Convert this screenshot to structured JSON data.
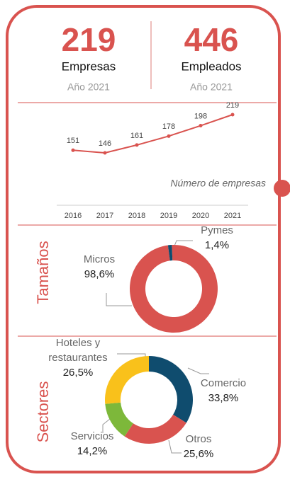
{
  "stats": [
    {
      "value": 219,
      "label": "Empresas",
      "year": "Año 2021"
    },
    {
      "value": 446,
      "label": "Empleados",
      "year": "Año 2021"
    }
  ],
  "chart_data": [
    {
      "type": "line",
      "annotation": "Número de empresas",
      "x": [
        2016,
        2017,
        2018,
        2019,
        2020,
        2021
      ],
      "values": [
        151,
        146,
        161,
        178,
        198,
        219
      ],
      "color": "#d9534f"
    },
    {
      "type": "pie",
      "title": "Tamaños",
      "categories": [
        "Micros",
        "Pymes"
      ],
      "values": [
        98.6,
        1.4
      ],
      "value_labels": [
        "98,6%",
        "1,4%"
      ],
      "colors": [
        "#d9534f",
        "#0f4c6e"
      ]
    },
    {
      "type": "pie",
      "title": "Sectores",
      "categories": [
        "Comercio",
        "Otros",
        "Servicios",
        "Hoteles y restaurantes"
      ],
      "values": [
        33.8,
        25.6,
        14.2,
        26.5
      ],
      "value_labels": [
        "33,8%",
        "25,6%",
        "14,2%",
        "26,5%"
      ],
      "colors": [
        "#0f4c6e",
        "#d9534f",
        "#7db83a",
        "#f9c11b"
      ]
    }
  ]
}
